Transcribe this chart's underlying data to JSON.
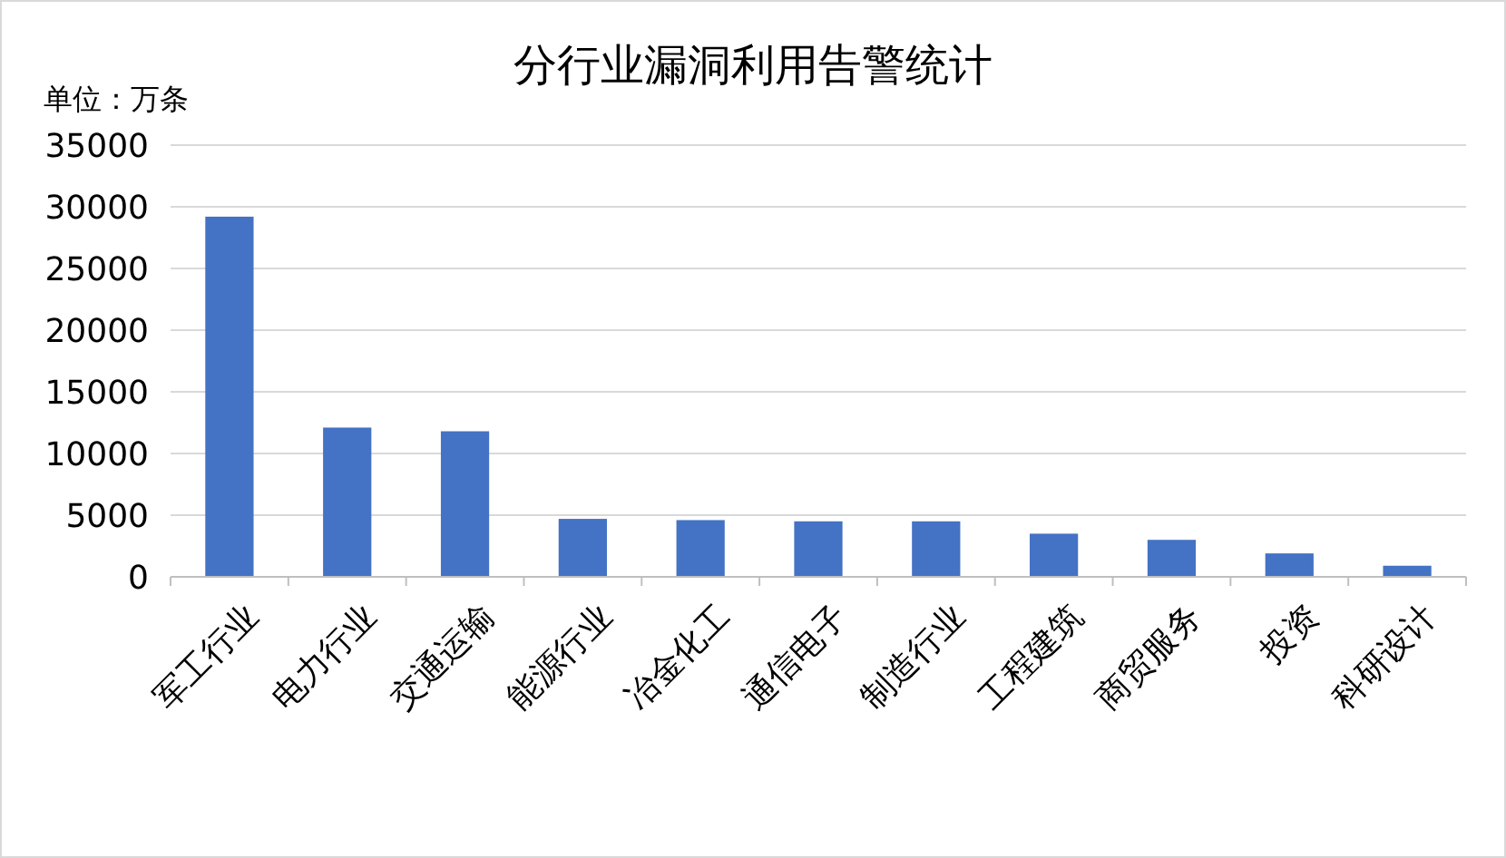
{
  "chart_data": {
    "type": "bar",
    "title": "分行业漏洞利用告警统计",
    "ylabel": "单位：万条",
    "categories": [
      "军工行业",
      "电力行业",
      "交通运输",
      "能源行业",
      "冶金化工",
      "通信电子",
      "制造行业",
      "工程建筑",
      "商贸服务",
      "投资",
      "科研设计"
    ],
    "values": [
      29200,
      12100,
      11800,
      4700,
      4600,
      4500,
      4500,
      3500,
      3000,
      1900,
      900
    ],
    "color": "#4472c4",
    "ylim": [
      0,
      35000
    ],
    "yticks": [
      0,
      5000,
      10000,
      15000,
      20000,
      25000,
      30000,
      35000
    ],
    "grid": "y"
  }
}
